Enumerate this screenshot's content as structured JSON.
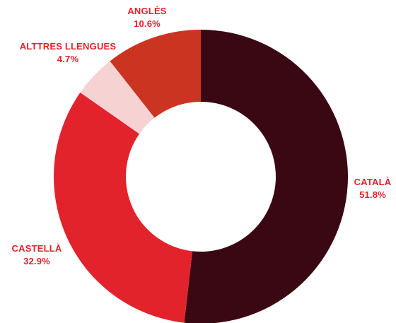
{
  "chart_data": {
    "type": "pie",
    "variant": "donut",
    "slices": [
      {
        "label": "CATALÀ",
        "value": 51.8,
        "display": "51.8%",
        "color": "#3a0812"
      },
      {
        "label": "CASTELLÀ",
        "value": 32.9,
        "display": "32.9%",
        "color": "#e2232c"
      },
      {
        "label": "ALTTRES LLENGUES",
        "value": 4.7,
        "display": "4.7%",
        "color": "#f7d2d3"
      },
      {
        "label": "ANGLÈS",
        "value": 10.6,
        "display": "10.6%",
        "color": "#cc3422"
      }
    ],
    "label_color": "#e2232c",
    "start_angle": "12 o'clock",
    "direction": "clockwise",
    "legend": "none"
  }
}
